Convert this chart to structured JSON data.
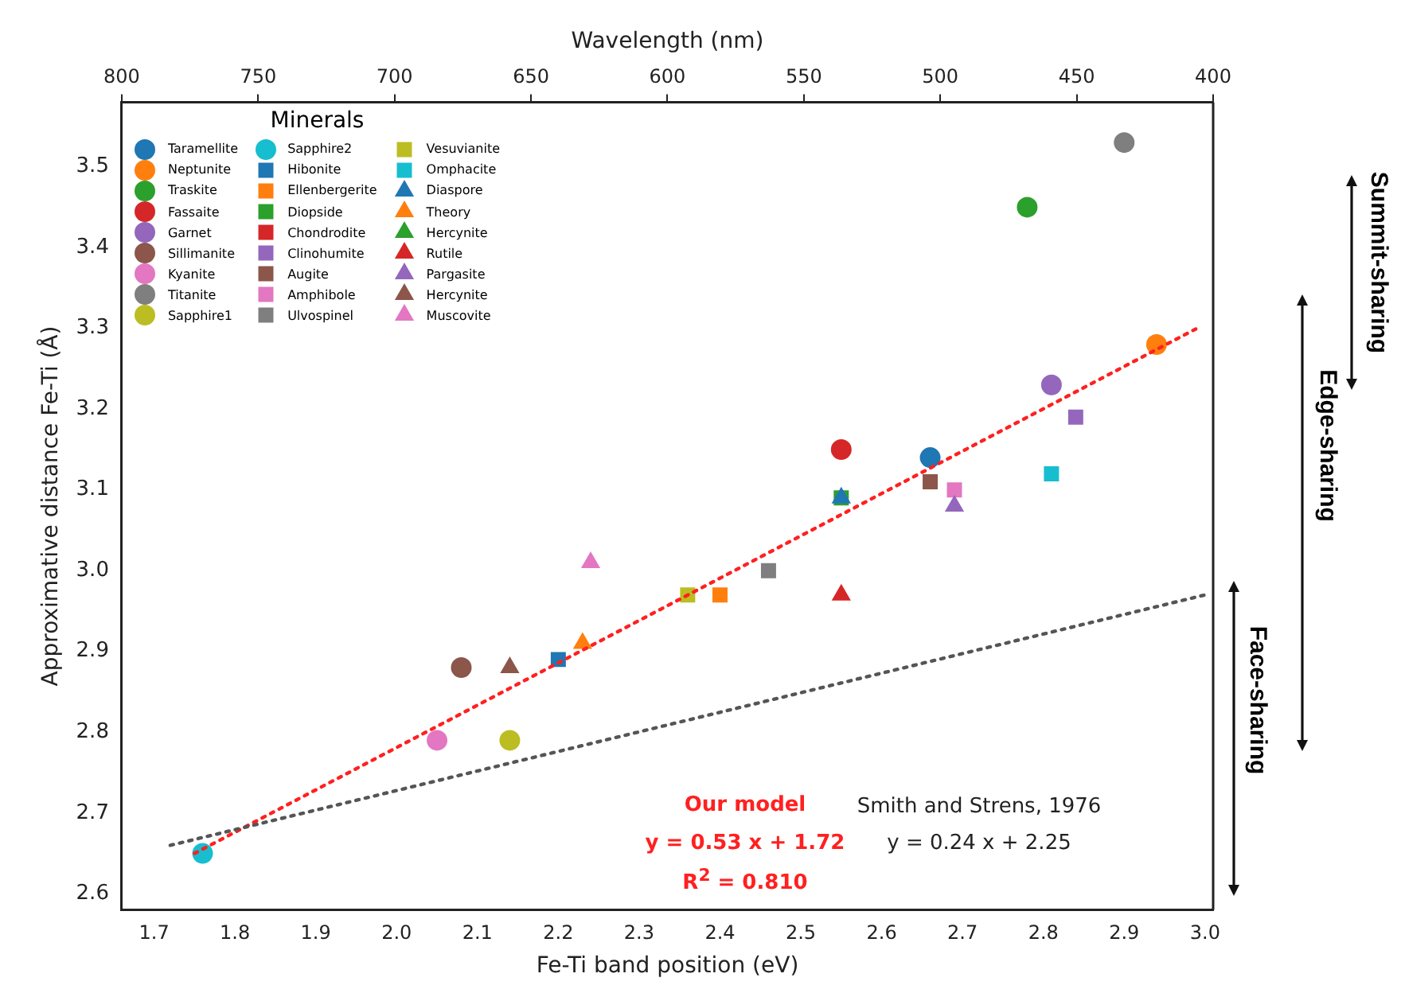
{
  "chart_data": {
    "type": "scatter",
    "xlabel": "Fe-Ti band position (eV)",
    "ylabel": "Approximative distance Fe-Ti (Å)",
    "x2label": "Wavelength (nm)",
    "legend_title": "Minerals",
    "legend": "top left",
    "grid": false,
    "xlim": [
      1.66,
      3.01
    ],
    "xticks": [
      1.7,
      1.8,
      1.9,
      {
        "value": 2,
        "label": "2.0"
      },
      2.1,
      2.2,
      2.3,
      2.4,
      2.5,
      2.6,
      2.7,
      2.8,
      2.9,
      {
        "value": 3,
        "label": "3.0"
      }
    ],
    "x2lim": [
      800,
      400
    ],
    "x2ticks": [
      800,
      750,
      700,
      650,
      600,
      550,
      500,
      450,
      400
    ],
    "ylim": [
      2.58,
      3.58
    ],
    "yticks": [
      2.6,
      2.7,
      2.8,
      2.9,
      {
        "value": 3,
        "label": "3.0"
      },
      3.1,
      3.2,
      3.3,
      3.4,
      3.5
    ],
    "series": [
      {
        "name": "Taramellite",
        "color": "#1f77b4",
        "marker": "circle",
        "x": [
          2.66
        ],
        "values": [
          3.14
        ]
      },
      {
        "name": "Neptunite",
        "color": "#ff7f0e",
        "marker": "circle",
        "x": [
          2.94
        ],
        "values": [
          3.28
        ]
      },
      {
        "name": "Traskite",
        "color": "#2ca02c",
        "marker": "circle",
        "x": [
          2.78
        ],
        "values": [
          3.45
        ]
      },
      {
        "name": "Fassaite",
        "color": "#d62728",
        "marker": "circle",
        "x": [
          2.55
        ],
        "values": [
          3.15
        ]
      },
      {
        "name": "Garnet",
        "color": "#9467bd",
        "marker": "circle",
        "x": [
          2.81
        ],
        "values": [
          3.23
        ]
      },
      {
        "name": "Sillimanite",
        "color": "#8c564b",
        "marker": "circle",
        "x": [
          2.08
        ],
        "values": [
          2.88
        ]
      },
      {
        "name": "Kyanite",
        "color": "#e377c2",
        "marker": "circle",
        "x": [
          2.05
        ],
        "values": [
          2.79
        ]
      },
      {
        "name": "Titanite",
        "color": "#7f7f7f",
        "marker": "circle",
        "x": [
          2.9
        ],
        "values": [
          3.53
        ]
      },
      {
        "name": "Sapphire1",
        "color": "#bcbd22",
        "marker": "circle",
        "x": [
          2.14
        ],
        "values": [
          2.79
        ]
      },
      {
        "name": "Sapphire2",
        "color": "#17becf",
        "marker": "circle",
        "x": [
          1.76
        ],
        "values": [
          2.65
        ]
      },
      {
        "name": "Hibonite",
        "color": "#1f77b4",
        "marker": "square",
        "x": [
          2.2
        ],
        "values": [
          2.89
        ]
      },
      {
        "name": "Ellenbergerite",
        "color": "#ff7f0e",
        "marker": "square",
        "x": [
          2.4
        ],
        "values": [
          2.97
        ]
      },
      {
        "name": "Diopside",
        "color": "#2ca02c",
        "marker": "square",
        "x": [
          2.55
        ],
        "values": [
          3.09
        ]
      },
      {
        "name": "Chondrodite",
        "color": "#d62728",
        "marker": "square",
        "x": [
          null
        ],
        "values": [
          null
        ]
      },
      {
        "name": "Clinohumite",
        "color": "#9467bd",
        "marker": "square",
        "x": [
          2.84
        ],
        "values": [
          3.19
        ]
      },
      {
        "name": "Augite",
        "color": "#8c564b",
        "marker": "square",
        "x": [
          2.66
        ],
        "values": [
          3.11
        ]
      },
      {
        "name": "Amphibole",
        "color": "#e377c2",
        "marker": "square",
        "x": [
          2.69
        ],
        "values": [
          3.1
        ]
      },
      {
        "name": "Ulvospinel",
        "color": "#7f7f7f",
        "marker": "square",
        "x": [
          2.46
        ],
        "values": [
          3.0
        ]
      },
      {
        "name": "Vesuvianite",
        "color": "#bcbd22",
        "marker": "square",
        "x": [
          2.36
        ],
        "values": [
          2.97
        ]
      },
      {
        "name": "Omphacite",
        "color": "#17becf",
        "marker": "square",
        "x": [
          2.81
        ],
        "values": [
          3.12
        ]
      },
      {
        "name": "Diaspore",
        "color": "#1f77b4",
        "marker": "triangle",
        "x": [
          2.55
        ],
        "values": [
          3.09
        ]
      },
      {
        "name": "Theory",
        "color": "#ff7f0e",
        "marker": "triangle",
        "x": [
          2.23
        ],
        "values": [
          2.91
        ]
      },
      {
        "name": "Hercynite",
        "color": "#2ca02c",
        "marker": "triangle",
        "x": [
          null
        ],
        "values": [
          null
        ]
      },
      {
        "name": "Rutile",
        "color": "#d62728",
        "marker": "triangle",
        "x": [
          2.55
        ],
        "values": [
          2.97
        ]
      },
      {
        "name": "Pargasite",
        "color": "#9467bd",
        "marker": "triangle",
        "x": [
          2.69
        ],
        "values": [
          3.08
        ]
      },
      {
        "name": "Hercynite",
        "color": "#8c564b",
        "marker": "triangle",
        "x": [
          2.14
        ],
        "values": [
          2.88
        ]
      },
      {
        "name": "Muscovite",
        "color": "#e377c2",
        "marker": "triangle",
        "x": [
          2.24
        ],
        "values": [
          3.01
        ]
      },
      {
        "type": "line",
        "color": "#ff2020",
        "line_style": "dotted",
        "marker": "none",
        "x": [
          1.75,
          2.99
        ],
        "values": [
          2.65,
          3.3
        ]
      },
      {
        "type": "line",
        "color": "#555555",
        "line_style": "dotted",
        "marker": "none",
        "x": [
          1.72,
          3.0
        ],
        "values": [
          2.66,
          2.97
        ]
      }
    ],
    "annotations": [
      "Our model",
      "y = 0.53 x + 1.72",
      "R$^{2}$ = 0.810",
      "Smith and Strens, 1976",
      "y = 0.24 x + 2.25",
      "Summit-sharing",
      "Edge-sharing",
      "Face-sharing"
    ]
  }
}
